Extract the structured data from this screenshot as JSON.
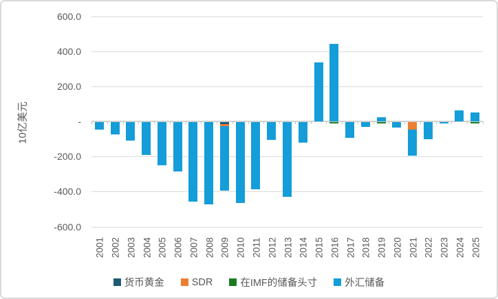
{
  "chart_data": {
    "type": "bar",
    "stacked": true,
    "title": "",
    "xlabel": "",
    "ylabel": "10亿美元",
    "ylim": [
      -600,
      600
    ],
    "grid": true,
    "legend_position": "bottom",
    "categories": [
      "2001",
      "2002",
      "2003",
      "2004",
      "2005",
      "2006",
      "2007",
      "2008",
      "2009",
      "2010",
      "2011",
      "2012",
      "2013",
      "2014",
      "2015",
      "2016",
      "2017",
      "2018",
      "2019",
      "2020",
      "2021",
      "2022",
      "2023",
      "2024",
      "2025"
    ],
    "yticks": [
      {
        "value": 600,
        "label": "600.0"
      },
      {
        "value": 400,
        "label": "400.0"
      },
      {
        "value": 200,
        "label": "200.0"
      },
      {
        "value": 0,
        "label": "-"
      },
      {
        "value": -200,
        "label": "-200.0"
      },
      {
        "value": -400,
        "label": "-400.0"
      },
      {
        "value": -600,
        "label": "-600.0"
      }
    ],
    "series": [
      {
        "name": "货币黄金",
        "color": "#1D5A74",
        "values": [
          0,
          0,
          0,
          0,
          0,
          0,
          0,
          0,
          -10,
          0,
          0,
          0,
          0,
          0,
          0,
          0,
          0,
          0,
          0,
          0,
          0,
          0,
          0,
          0,
          0
        ]
      },
      {
        "name": "SDR",
        "color": "#ED7D31",
        "values": [
          0,
          0,
          0,
          0,
          0,
          0,
          0,
          0,
          -13,
          0,
          0,
          0,
          0,
          0,
          0,
          0,
          0,
          0,
          0,
          0,
          -44,
          0,
          0,
          0,
          0
        ]
      },
      {
        "name": "在IMF的储备头寸",
        "color": "#1B7A22",
        "values": [
          0,
          0,
          0,
          0,
          0,
          0,
          0,
          0,
          0,
          0,
          0,
          0,
          0,
          0,
          0,
          -7,
          0,
          0,
          -6,
          0,
          0,
          0,
          0,
          0,
          -6
        ]
      },
      {
        "name": "外汇储备",
        "color": "#149DD8",
        "values": [
          -42,
          -72,
          -106,
          -188,
          -247,
          -282,
          -453,
          -468,
          -368,
          -462,
          -385,
          -103,
          -426,
          -118,
          335,
          441,
          -91,
          -26,
          25,
          -31,
          -146,
          -99,
          -7,
          61,
          51
        ]
      }
    ]
  }
}
